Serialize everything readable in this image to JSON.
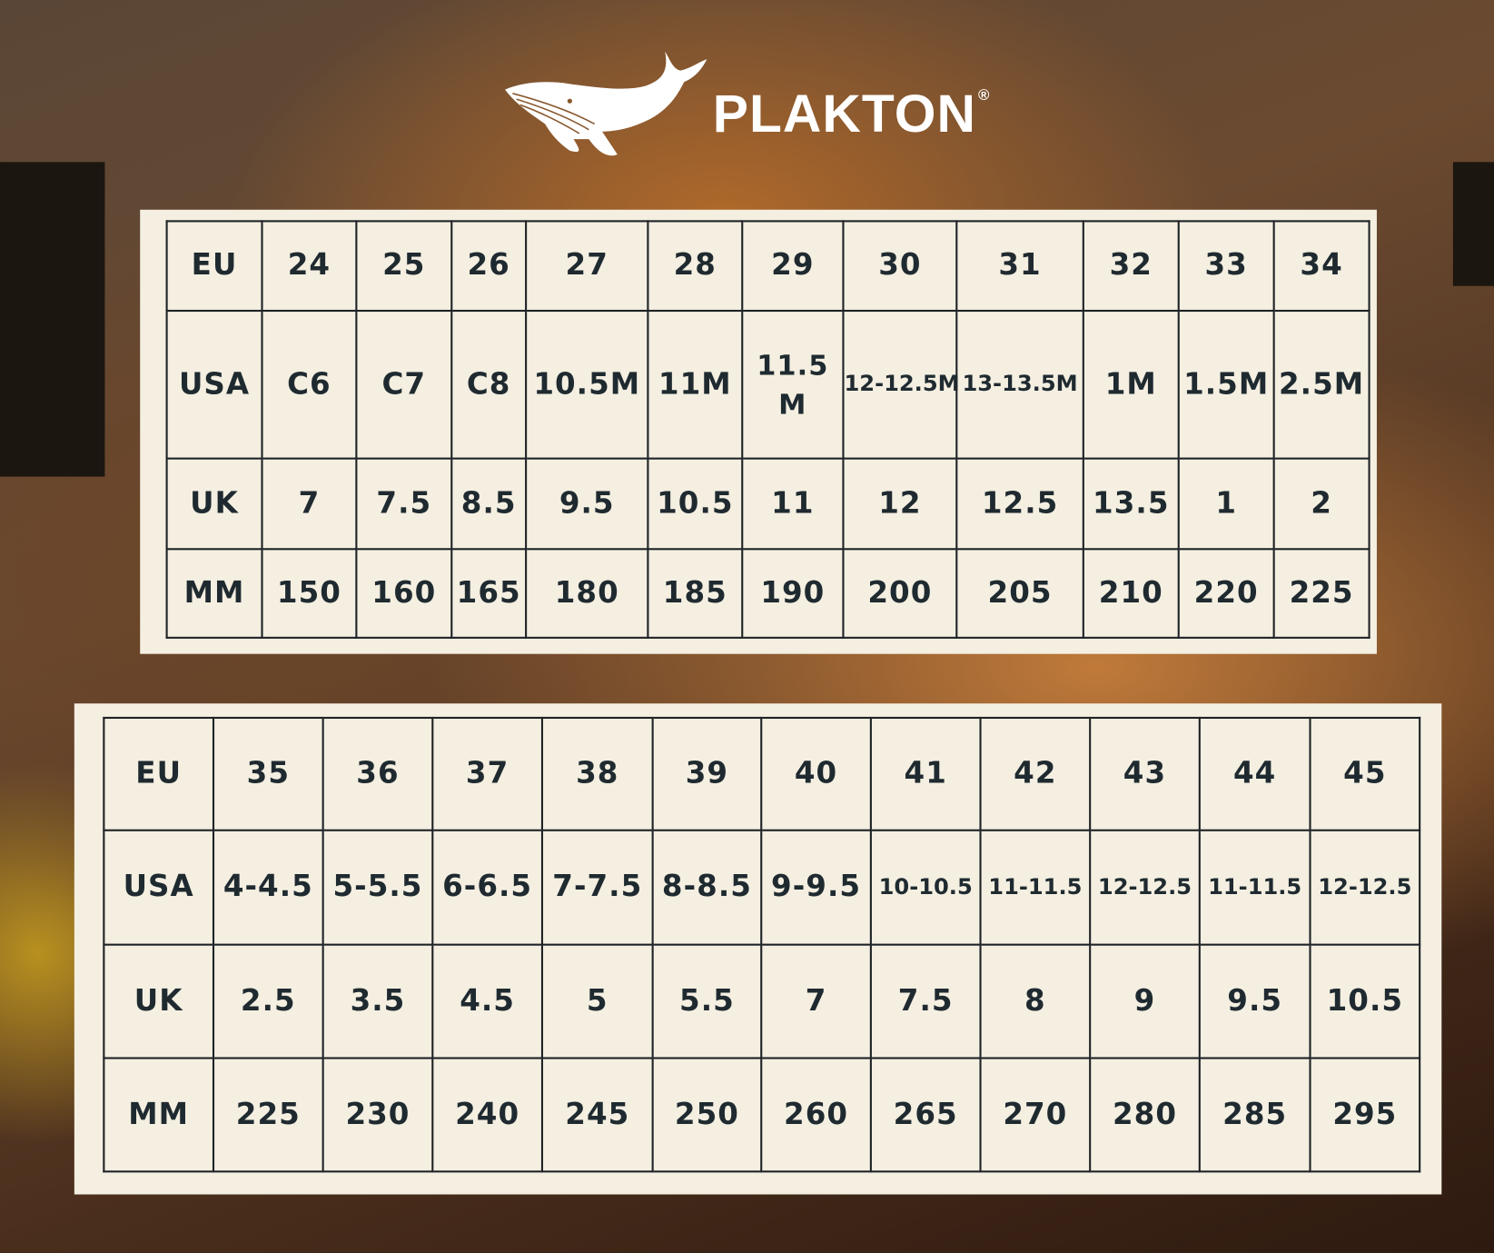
{
  "brand": {
    "name": "PLAKTON",
    "trademark": "®",
    "logo_icon": "whale-icon"
  },
  "colors": {
    "panel": "#f4efe1",
    "text": "#1f2a30",
    "brand_text": "#ffffff"
  },
  "tables": [
    {
      "rows": [
        {
          "label": "EU",
          "values": [
            "24",
            "25",
            "26",
            "27",
            "28",
            "29",
            "30",
            "31",
            "32",
            "33",
            "34"
          ]
        },
        {
          "label": "USA",
          "values": [
            "C6",
            "C7",
            "C8",
            "10.5M",
            "11M",
            "11.5 M",
            "12-12.5M",
            "13-13.5M",
            "1M",
            "1.5M",
            "2.5M"
          ]
        },
        {
          "label": "UK",
          "values": [
            "7",
            "7.5",
            "8.5",
            "9.5",
            "10.5",
            "11",
            "12",
            "12.5",
            "13.5",
            "1",
            "2"
          ]
        },
        {
          "label": "MM",
          "values": [
            "150",
            "160",
            "165",
            "180",
            "185",
            "190",
            "200",
            "205",
            "210",
            "220",
            "225"
          ]
        }
      ]
    },
    {
      "rows": [
        {
          "label": "EU",
          "values": [
            "35",
            "36",
            "37",
            "38",
            "39",
            "40",
            "41",
            "42",
            "43",
            "44",
            "45"
          ]
        },
        {
          "label": "USA",
          "values": [
            "4-4.5",
            "5-5.5",
            "6-6.5",
            "7-7.5",
            "8-8.5",
            "9-9.5",
            "10-10.5",
            "11-11.5",
            "12-12.5",
            "11-11.5",
            "12-12.5"
          ]
        },
        {
          "label": "UK",
          "values": [
            "2.5",
            "3.5",
            "4.5",
            "5",
            "5.5",
            "7",
            "7.5",
            "8",
            "9",
            "9.5",
            "10.5"
          ]
        },
        {
          "label": "MM",
          "values": [
            "225",
            "230",
            "240",
            "245",
            "250",
            "260",
            "265",
            "270",
            "280",
            "285",
            "295"
          ]
        }
      ]
    }
  ]
}
